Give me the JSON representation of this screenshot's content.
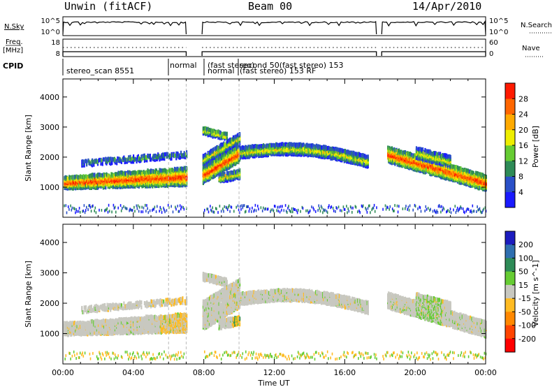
{
  "header": {
    "radar": "Unwin (fitACF)",
    "beam": "Beam 00",
    "date": "14/Apr/2010"
  },
  "strip_labels": {
    "nsky": "N.Sky",
    "nsky_ticks": [
      "10^5",
      "10^0"
    ],
    "nsearch": "N.Search",
    "nsearch_ticks": [
      "10^5",
      "10^0"
    ],
    "freq": "Freq.",
    "freq_unit": "[MHz]",
    "freq_ticks": [
      "18",
      "8"
    ],
    "nave": "Nave",
    "nave_ticks": [
      "60",
      "0"
    ],
    "cpid": "CPID"
  },
  "cpid_labels": [
    {
      "text": "stereo_scan 8551"
    },
    {
      "text": "normal"
    },
    {
      "text": "(fast stereo)"
    },
    {
      "text": "normal"
    },
    {
      "text": "second 50(fast stereo) 153"
    },
    {
      "text": "(fast stereo) 153 RF"
    }
  ],
  "chart_data": {
    "type": "heatmap",
    "xlabel": "Time UT",
    "xticks": [
      "00:00",
      "04:00",
      "08:00",
      "12:00",
      "16:00",
      "20:00",
      "00:00"
    ],
    "xlim_hours": [
      0,
      24
    ],
    "gaps_hours": [
      [
        7.0,
        7.9
      ],
      [
        17.8,
        18.1
      ]
    ],
    "panels": [
      {
        "name": "power",
        "ylabel": "Slant Range [km]",
        "yticks": [
          "1000",
          "2000",
          "3000",
          "4000"
        ],
        "ylim": [
          0,
          4600
        ],
        "colorbar_label": "Power [dB]",
        "colorbar_ticks": [
          "4",
          "8",
          "12",
          "16",
          "20",
          "24",
          "28"
        ],
        "colorbar_colors": [
          "#1a1aff",
          "#2a50c8",
          "#2e8b57",
          "#66cc33",
          "#eeee00",
          "#ffaa00",
          "#ff6600",
          "#ff1a00"
        ]
      },
      {
        "name": "velocity",
        "ylabel": "Slant Range [km]",
        "yticks": [
          "1000",
          "2000",
          "3000",
          "4000"
        ],
        "ylim": [
          0,
          4600
        ],
        "colorbar_label": "Velocity [m s^-1]",
        "colorbar_ticks": [
          "200",
          "100",
          "50",
          "15",
          "-15",
          "-50",
          "-100",
          "-200"
        ],
        "colorbar_colors": [
          "#1c1cbf",
          "#2f6fb0",
          "#2e8b57",
          "#66cc33",
          "#c8c8c0",
          "#ffbb22",
          "#ff8800",
          "#ff4400",
          "#ff0000"
        ]
      }
    ]
  }
}
